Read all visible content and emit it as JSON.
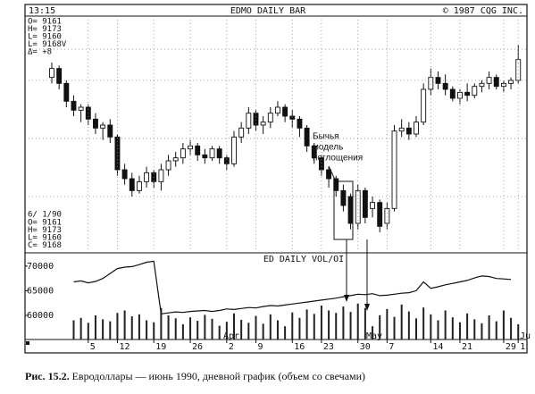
{
  "header": {
    "time": "13:15",
    "copyright": "© 1987 CQG INC."
  },
  "info": [
    "O= 9161",
    "H= 9173",
    "L= 9160",
    "L= 9168V",
    "Δ= +8"
  ],
  "quote": {
    "date": "6/ 1/90",
    "lines": [
      "O= 9161",
      "H= 9173",
      "L= 9160",
      "C= 9168"
    ]
  },
  "chart_data": [
    {
      "type": "candlestick",
      "title": "EDMO DAILY BAR",
      "up_color": "#ffffff",
      "down_color": "#111111",
      "annotation": [
        "Бычья",
        "модель",
        "поглощения"
      ],
      "ylim": [
        9104,
        9182
      ],
      "open": [
        9162,
        9165,
        9160,
        9154,
        9151,
        9152,
        9148,
        9145,
        9146,
        9142,
        9131,
        9128,
        9124,
        9127,
        9130,
        9127,
        9131,
        9134,
        9135,
        9138,
        9139,
        9136,
        9135,
        9138,
        9135,
        9133,
        9142,
        9145,
        9150,
        9146,
        9147,
        9150,
        9152,
        9149,
        9148,
        9145,
        9139,
        9135,
        9131,
        9128,
        9124,
        9122,
        9113,
        9124,
        9118,
        9120,
        9113,
        9118,
        9144,
        9145,
        9143,
        9147,
        9158,
        9162,
        9160,
        9158,
        9155,
        9157,
        9156,
        9159,
        9160,
        9162,
        9159,
        9160,
        9161
      ],
      "high": [
        9167,
        9166,
        9161,
        9156,
        9153,
        9153,
        9150,
        9147,
        9148,
        9143,
        9133,
        9130,
        9129,
        9132,
        9131,
        9133,
        9136,
        9137,
        9140,
        9141,
        9140,
        9138,
        9139,
        9139,
        9136,
        9144,
        9147,
        9152,
        9151,
        9149,
        9152,
        9154,
        9153,
        9151,
        9149,
        9146,
        9140,
        9136,
        9132,
        9129,
        9126,
        9123,
        9126,
        9125,
        9122,
        9121,
        9120,
        9146,
        9148,
        9147,
        9149,
        9160,
        9165,
        9164,
        9163,
        9159,
        9158,
        9160,
        9160,
        9161,
        9164,
        9163,
        9161,
        9162,
        9173
      ],
      "low": [
        9160,
        9158,
        9152,
        9149,
        9147,
        9146,
        9143,
        9141,
        9140,
        9129,
        9126,
        9122,
        9123,
        9125,
        9125,
        9124,
        9129,
        9132,
        9133,
        9136,
        9134,
        9133,
        9134,
        9133,
        9131,
        9132,
        9140,
        9143,
        9144,
        9143,
        9145,
        9149,
        9147,
        9145,
        9142,
        9137,
        9133,
        9129,
        9125,
        9122,
        9117,
        9111,
        9111,
        9113,
        9115,
        9110,
        9111,
        9117,
        9142,
        9141,
        9142,
        9146,
        9156,
        9158,
        9156,
        9154,
        9153,
        9154,
        9155,
        9157,
        9158,
        9158,
        9157,
        9158,
        9160
      ],
      "close": [
        9165,
        9160,
        9154,
        9151,
        9152,
        9148,
        9145,
        9146,
        9142,
        9131,
        9128,
        9124,
        9127,
        9130,
        9127,
        9131,
        9134,
        9135,
        9138,
        9139,
        9136,
        9135,
        9138,
        9135,
        9133,
        9142,
        9145,
        9150,
        9146,
        9147,
        9150,
        9152,
        9149,
        9148,
        9145,
        9139,
        9135,
        9131,
        9128,
        9124,
        9119,
        9113,
        9124,
        9115,
        9120,
        9112,
        9118,
        9144,
        9145,
        9143,
        9147,
        9158,
        9162,
        9160,
        9158,
        9155,
        9157,
        9156,
        9159,
        9160,
        9162,
        9159,
        9160,
        9161,
        9168
      ]
    },
    {
      "type": "volume-oi",
      "title": "ED DAILY VOL/OI",
      "categories": [
        null,
        null,
        null,
        null,
        null,
        "5",
        null,
        null,
        null,
        "12",
        null,
        null,
        null,
        null,
        "19",
        null,
        null,
        null,
        null,
        "26",
        null,
        null,
        null,
        null,
        "2",
        null,
        null,
        null,
        "9",
        null,
        null,
        null,
        null,
        "16",
        null,
        null,
        null,
        "23",
        null,
        null,
        null,
        null,
        "30",
        null,
        null,
        null,
        "7",
        null,
        null,
        null,
        null,
        null,
        "14",
        null,
        null,
        null,
        "21",
        null,
        null,
        null,
        null,
        null,
        "29",
        null,
        "1"
      ],
      "month_labels": [
        "Apr",
        "May",
        "Ju"
      ],
      "ylim": [
        55100,
        72700
      ],
      "yticks": [
        60000,
        65000,
        70000
      ],
      "series": [
        {
          "type": "bar",
          "color": "#222222",
          "values": [
            null,
            null,
            null,
            59000,
            59500,
            58500,
            60000,
            59200,
            58800,
            60500,
            61000,
            59800,
            60200,
            59000,
            58600,
            61500,
            60000,
            59400,
            58200,
            59600,
            58900,
            60100,
            59300,
            57900,
            58700,
            60400,
            59100,
            58500,
            59900,
            58300,
            60200,
            59000,
            57800,
            60600,
            59500,
            61200,
            60300,
            62000,
            61000,
            60500,
            61800,
            60700,
            62400,
            61500,
            57800,
            60000,
            61300,
            59700,
            62200,
            60800,
            59400,
            61600,
            60200,
            59000,
            61000,
            59600,
            58600,
            60400,
            59200,
            58400,
            60000,
            58800,
            61000,
            59500,
            58200
          ]
        },
        {
          "type": "line",
          "color": "#111111",
          "values": [
            null,
            null,
            null,
            66800,
            67000,
            66600,
            66900,
            67500,
            68500,
            69500,
            69800,
            69900,
            70300,
            70800,
            71000,
            60300,
            60500,
            60700,
            60600,
            60800,
            60900,
            61000,
            60800,
            61000,
            61300,
            61200,
            61400,
            61600,
            61500,
            61800,
            62000,
            61900,
            62100,
            62300,
            62500,
            62700,
            62900,
            63100,
            63300,
            63500,
            63800,
            64000,
            64300,
            64200,
            64400,
            64000,
            64100,
            64300,
            64500,
            64600,
            65000,
            66800,
            65500,
            65800,
            66200,
            66500,
            66800,
            67100,
            67600,
            68000,
            67900,
            67500,
            67400,
            67300,
            null
          ]
        }
      ]
    }
  ],
  "caption": {
    "label": "Рис. 15.2.",
    "text": "Евродоллары — июнь 1990, дневной график (объем со свечами)"
  }
}
